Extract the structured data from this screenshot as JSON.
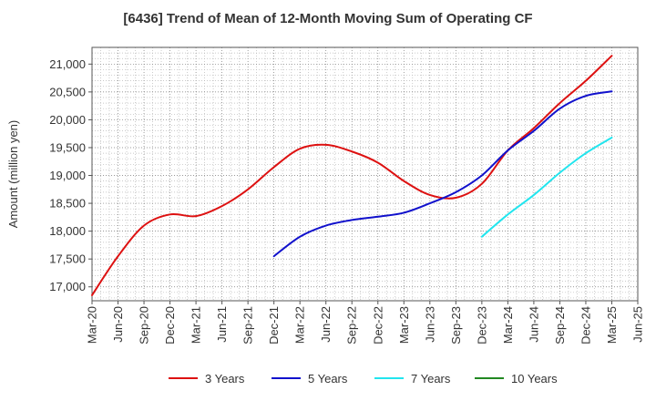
{
  "chart_data": {
    "type": "line",
    "title": "[6436]  Trend of Mean of 12-Month Moving Sum of Operating CF",
    "xlabel": "",
    "ylabel": "Amount (million yen)",
    "ylim": [
      16750,
      21300
    ],
    "yticks": [
      17000,
      17500,
      18000,
      18500,
      19000,
      19500,
      20000,
      20500,
      21000
    ],
    "ytick_labels": [
      "17,000",
      "17,500",
      "18,000",
      "18,500",
      "19,000",
      "19,500",
      "20,000",
      "20,500",
      "21,000"
    ],
    "x_tick_labels": [
      "Mar-20",
      "Jun-20",
      "Sep-20",
      "Dec-20",
      "Mar-21",
      "Jun-21",
      "Sep-21",
      "Dec-21",
      "Mar-22",
      "Jun-22",
      "Sep-22",
      "Dec-22",
      "Mar-23",
      "Jun-23",
      "Sep-23",
      "Dec-23",
      "Mar-24",
      "Jun-24",
      "Sep-24",
      "Dec-24",
      "Mar-25",
      "Jun-25"
    ],
    "grid": true,
    "legend_position": "bottom",
    "series": [
      {
        "name": "3 Years",
        "color": "#dd1111",
        "values": [
          16850,
          17550,
          18100,
          18300,
          18270,
          18450,
          18750,
          19150,
          19480,
          19550,
          19430,
          19230,
          18900,
          18650,
          18600,
          18850,
          19450,
          19850,
          20300,
          20700,
          21150,
          null
        ]
      },
      {
        "name": "5 Years",
        "color": "#1111cc",
        "values": [
          null,
          null,
          null,
          null,
          null,
          null,
          null,
          17550,
          17900,
          18100,
          18200,
          18260,
          18330,
          18500,
          18700,
          19000,
          19450,
          19800,
          20200,
          20430,
          20510,
          null
        ]
      },
      {
        "name": "7 Years",
        "color": "#22e5ee",
        "values": [
          null,
          null,
          null,
          null,
          null,
          null,
          null,
          null,
          null,
          null,
          null,
          null,
          null,
          null,
          null,
          17900,
          18300,
          18650,
          19050,
          19400,
          19680,
          null
        ]
      },
      {
        "name": "10 Years",
        "color": "#228822",
        "values": [
          null,
          null,
          null,
          null,
          null,
          null,
          null,
          null,
          null,
          null,
          null,
          null,
          null,
          null,
          null,
          null,
          null,
          null,
          null,
          null,
          null,
          null
        ]
      }
    ]
  }
}
